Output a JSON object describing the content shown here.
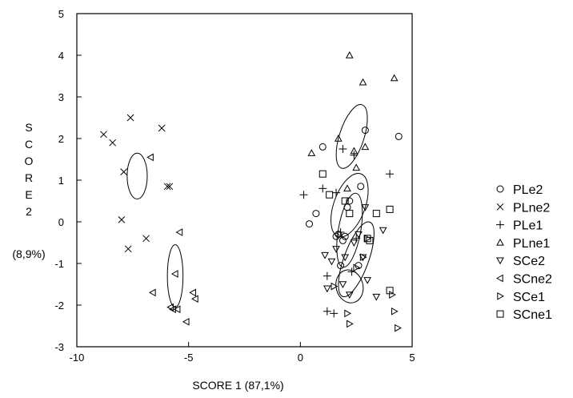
{
  "chart_data": {
    "type": "scatter",
    "title": "",
    "xlabel": "SCORE 1 (87,1%)",
    "ylabel_letters": [
      "S",
      "C",
      "O",
      "R",
      "E",
      "2"
    ],
    "ylabel_pct": "(8,9%)",
    "xlim": [
      -10,
      5
    ],
    "ylim": [
      -3,
      5
    ],
    "xticks": [
      -10,
      -5,
      0,
      5
    ],
    "yticks": [
      -3,
      -2,
      -1,
      0,
      1,
      2,
      3,
      4,
      5
    ],
    "grid": false,
    "legend_position": "right",
    "series": [
      {
        "name": "PLe2",
        "marker": "circle",
        "points": [
          [
            1,
            1.8
          ],
          [
            2.9,
            2.2
          ],
          [
            4.4,
            2.05
          ],
          [
            0.7,
            0.2
          ],
          [
            2.7,
            0.85
          ],
          [
            2.1,
            0.35
          ],
          [
            1.7,
            -0.3
          ],
          [
            1.9,
            -0.45
          ],
          [
            2.0,
            -0.35
          ],
          [
            1.8,
            -1.05
          ],
          [
            0.4,
            -0.05
          ],
          [
            1.6,
            -0.35
          ],
          [
            2.6,
            -1.05
          ],
          [
            2.2,
            0.5
          ]
        ]
      },
      {
        "name": "PLne2",
        "marker": "x",
        "points": [
          [
            -8.8,
            2.1
          ],
          [
            -8.4,
            1.9
          ],
          [
            -7.6,
            2.5
          ],
          [
            -6.2,
            2.25
          ],
          [
            -7.9,
            1.2
          ],
          [
            -5.95,
            0.85
          ],
          [
            -5.85,
            0.85
          ],
          [
            -8.0,
            0.05
          ],
          [
            -7.7,
            -0.65
          ],
          [
            -6.9,
            -0.4
          ]
        ]
      },
      {
        "name": "PLe1",
        "marker": "plus",
        "points": [
          [
            1.9,
            1.75
          ],
          [
            2.4,
            1.6
          ],
          [
            1.0,
            0.8
          ],
          [
            0.15,
            0.65
          ],
          [
            4.0,
            1.15
          ],
          [
            1.6,
            0.7
          ],
          [
            2.5,
            -0.4
          ],
          [
            1.2,
            -1.3
          ],
          [
            1.2,
            -2.15
          ],
          [
            1.5,
            -2.2
          ],
          [
            1.8,
            -0.25
          ],
          [
            2.3,
            -1.2
          ]
        ]
      },
      {
        "name": "PLne1",
        "marker": "triangle-up",
        "points": [
          [
            2.2,
            4.0
          ],
          [
            2.8,
            3.35
          ],
          [
            4.2,
            3.45
          ],
          [
            0.5,
            1.65
          ],
          [
            1.7,
            2.0
          ],
          [
            2.4,
            1.7
          ],
          [
            2.9,
            1.8
          ],
          [
            2.5,
            1.3
          ],
          [
            2.1,
            0.8
          ]
        ]
      },
      {
        "name": "SCe2",
        "marker": "triangle-down",
        "points": [
          [
            1.1,
            -0.8
          ],
          [
            1.4,
            -0.95
          ],
          [
            1.6,
            -0.65
          ],
          [
            2.0,
            -0.85
          ],
          [
            2.8,
            -0.85
          ],
          [
            3.0,
            -1.4
          ],
          [
            2.2,
            -1.75
          ],
          [
            3.4,
            -1.8
          ],
          [
            1.2,
            -1.6
          ],
          [
            3.7,
            -0.2
          ],
          [
            2.6,
            -0.3
          ],
          [
            1.9,
            -1.5
          ],
          [
            2.4,
            -0.5
          ],
          [
            2.9,
            0.35
          ]
        ]
      },
      {
        "name": "SCne2",
        "marker": "triangle-left",
        "points": [
          [
            -6.7,
            1.55
          ],
          [
            -5.4,
            -0.25
          ],
          [
            -5.6,
            -1.25
          ],
          [
            -6.6,
            -1.7
          ],
          [
            -5.8,
            -2.05
          ],
          [
            -5.7,
            -2.1
          ],
          [
            -5.5,
            -2.1
          ],
          [
            -4.8,
            -1.7
          ],
          [
            -4.7,
            -1.85
          ],
          [
            -5.1,
            -2.4
          ]
        ]
      },
      {
        "name": "SCe1",
        "marker": "triangle-right",
        "points": [
          [
            2.8,
            -0.85
          ],
          [
            2.5,
            -1.1
          ],
          [
            2.1,
            -2.2
          ],
          [
            2.2,
            -2.45
          ],
          [
            4.1,
            -1.75
          ],
          [
            4.2,
            -2.15
          ],
          [
            4.35,
            -2.55
          ],
          [
            3.0,
            -0.4
          ],
          [
            1.5,
            -1.55
          ]
        ]
      },
      {
        "name": "SCne1",
        "marker": "square",
        "points": [
          [
            1.0,
            1.15
          ],
          [
            1.3,
            0.65
          ],
          [
            2.0,
            0.5
          ],
          [
            2.2,
            0.2
          ],
          [
            3.4,
            0.2
          ],
          [
            4.0,
            0.3
          ],
          [
            3.0,
            -0.4
          ],
          [
            3.1,
            -0.45
          ],
          [
            4.0,
            -1.65
          ]
        ]
      }
    ],
    "ellipses": [
      {
        "cx": -7.3,
        "cy": 1.1,
        "rx": 0.45,
        "ry": 0.55,
        "angle": 0
      },
      {
        "cx": -5.6,
        "cy": -1.3,
        "rx": 0.35,
        "ry": 0.75,
        "angle": 0
      },
      {
        "cx": 2.3,
        "cy": 2.05,
        "rx": 0.55,
        "ry": 0.8,
        "angle": 18
      },
      {
        "cx": 2.2,
        "cy": 0.4,
        "rx": 0.7,
        "ry": 0.8,
        "angle": 20
      },
      {
        "cx": 2.2,
        "cy": -0.2,
        "rx": 0.5,
        "ry": 0.9,
        "angle": 10
      },
      {
        "cx": 2.5,
        "cy": -0.9,
        "rx": 0.55,
        "ry": 0.95,
        "angle": 20
      },
      {
        "cx": 2.2,
        "cy": -1.55,
        "rx": 0.6,
        "ry": 0.4,
        "angle": -15
      }
    ]
  }
}
